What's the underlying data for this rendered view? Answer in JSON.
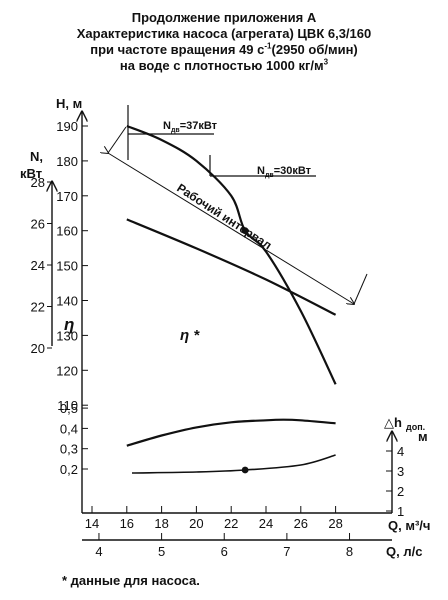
{
  "title": {
    "line1": "Продолжение приложения А",
    "line2": "Характеристика насоса (агрегата) ЦВК 6,3/160",
    "line3_pre": "при частоте вращения 49 с",
    "line3_sup": "-1",
    "line3_post": "(2950 об/мин)",
    "line4_pre": "на воде с плотностью 1000 кг/м",
    "line4_sup": "3"
  },
  "footnote": "* данные для насоса.",
  "chart_data": {
    "type": "line",
    "x_q_m3h": {
      "label": "Q, м³/ч",
      "ticks": [
        "14",
        "16",
        "18",
        "20",
        "22",
        "24",
        "26",
        "28"
      ],
      "range": [
        14,
        29
      ]
    },
    "x_q_ls": {
      "label": "Q, л/с",
      "ticks": [
        "4",
        "5",
        "6",
        "7",
        "8"
      ]
    },
    "y_head": {
      "label": "H, м",
      "ticks": [
        "110",
        "120",
        "130",
        "140",
        "150",
        "160",
        "170",
        "180",
        "190"
      ]
    },
    "y_power": {
      "label_line1": "N,",
      "label_line2": "кВт",
      "ticks": [
        "20",
        "22",
        "24",
        "26",
        "28"
      ]
    },
    "y_eff": {
      "label": "η",
      "ticks": [
        "0,2",
        "0,3",
        "0,4",
        "0,5"
      ]
    },
    "y_npsh": {
      "label_main": "△h",
      "label_sub": "доп.",
      "label_unit": "м",
      "ticks": [
        "1",
        "2",
        "3",
        "4"
      ]
    },
    "series": [
      {
        "key": "head",
        "x": [
          16,
          18,
          20,
          22,
          22.8,
          24,
          26,
          28
        ],
        "y": [
          190,
          186,
          180,
          170,
          160,
          154,
          137,
          116
        ]
      },
      {
        "key": "power",
        "x": [
          16,
          20,
          24,
          28
        ],
        "y": [
          26.2,
          24.8,
          23.3,
          21.6
        ]
      },
      {
        "key": "efficiency",
        "x": [
          16,
          18,
          20,
          22,
          24,
          25,
          26,
          28
        ],
        "y": [
          0.315,
          0.365,
          0.405,
          0.43,
          0.44,
          0.443,
          0.44,
          0.425
        ]
      },
      {
        "key": "npsh",
        "x": [
          16.3,
          20,
          22.8,
          26,
          28
        ],
        "y": [
          2.9,
          2.95,
          3.05,
          3.3,
          3.8
        ]
      }
    ],
    "annotations": {
      "power_note_1": {
        "main": "N",
        "sub": "дв",
        "value": "=37кВт"
      },
      "power_note_2": {
        "main": "N",
        "sub": "дв",
        "value": "=30кВт"
      },
      "working_range": "Рабочий интервал",
      "eff_star": "η *"
    }
  }
}
